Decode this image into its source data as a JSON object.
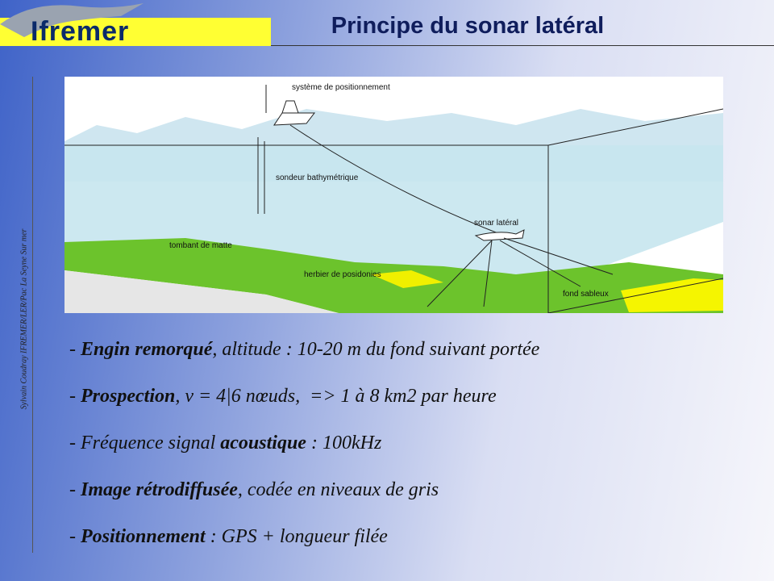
{
  "header": {
    "logo": "Ifremer",
    "title": "Principe du sonar latéral"
  },
  "side_note": "Sylvain Coudray IFREMER/LER/Pac  La Seyne Sur mer",
  "diagram": {
    "labels": [
      "système de positionnement",
      "sondeur bathymétrique",
      "sonar latéral",
      "tombant de matte",
      "herbier de posidonies",
      "fond sableux"
    ]
  },
  "bullets": [
    [
      {
        "text": "- ",
        "bold": false
      },
      {
        "text": "Engin remorqué",
        "bold": true
      },
      {
        "text": ", altitude : 10-20 m du fond suivant portée",
        "bold": false
      }
    ],
    [
      {
        "text": "- ",
        "bold": false
      },
      {
        "text": "Prospection",
        "bold": true
      },
      {
        "text": ", v = 4|6 nœuds,  => 1 à 8 km2 par heure",
        "bold": false
      }
    ],
    [
      {
        "text": "- Fréquence signal ",
        "bold": false
      },
      {
        "text": "acoustique",
        "bold": true
      },
      {
        "text": " : 100kHz",
        "bold": false
      }
    ],
    [
      {
        "text": "- ",
        "bold": false
      },
      {
        "text": "Image rétrodiffusée",
        "bold": true
      },
      {
        "text": ", codée en niveaux de gris",
        "bold": false
      }
    ],
    [
      {
        "text": "- ",
        "bold": false
      },
      {
        "text": "Positionnement",
        "bold": true
      },
      {
        "text": " : GPS + longueur filée",
        "bold": false
      }
    ]
  ]
}
